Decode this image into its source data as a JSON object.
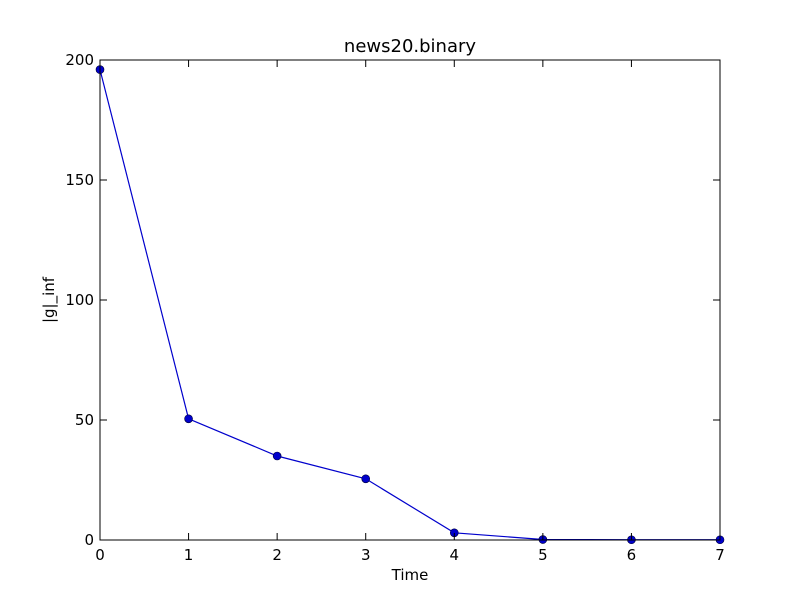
{
  "chart_data": {
    "type": "line",
    "title": "news20.binary",
    "xlabel": "Time",
    "ylabel": "|g|_inf",
    "xlim": [
      0,
      7
    ],
    "ylim": [
      0,
      200
    ],
    "xticks": [
      0,
      1,
      2,
      3,
      4,
      5,
      6,
      7
    ],
    "yticks": [
      0,
      50,
      100,
      150,
      200
    ],
    "grid": false,
    "series": [
      {
        "color": "#0000cc",
        "marker": "circle",
        "x": [
          0,
          1,
          2,
          3,
          4,
          5,
          6,
          7
        ],
        "y": [
          196,
          50.5,
          35,
          25.5,
          3,
          0.2,
          0.1,
          0.1
        ]
      }
    ]
  }
}
